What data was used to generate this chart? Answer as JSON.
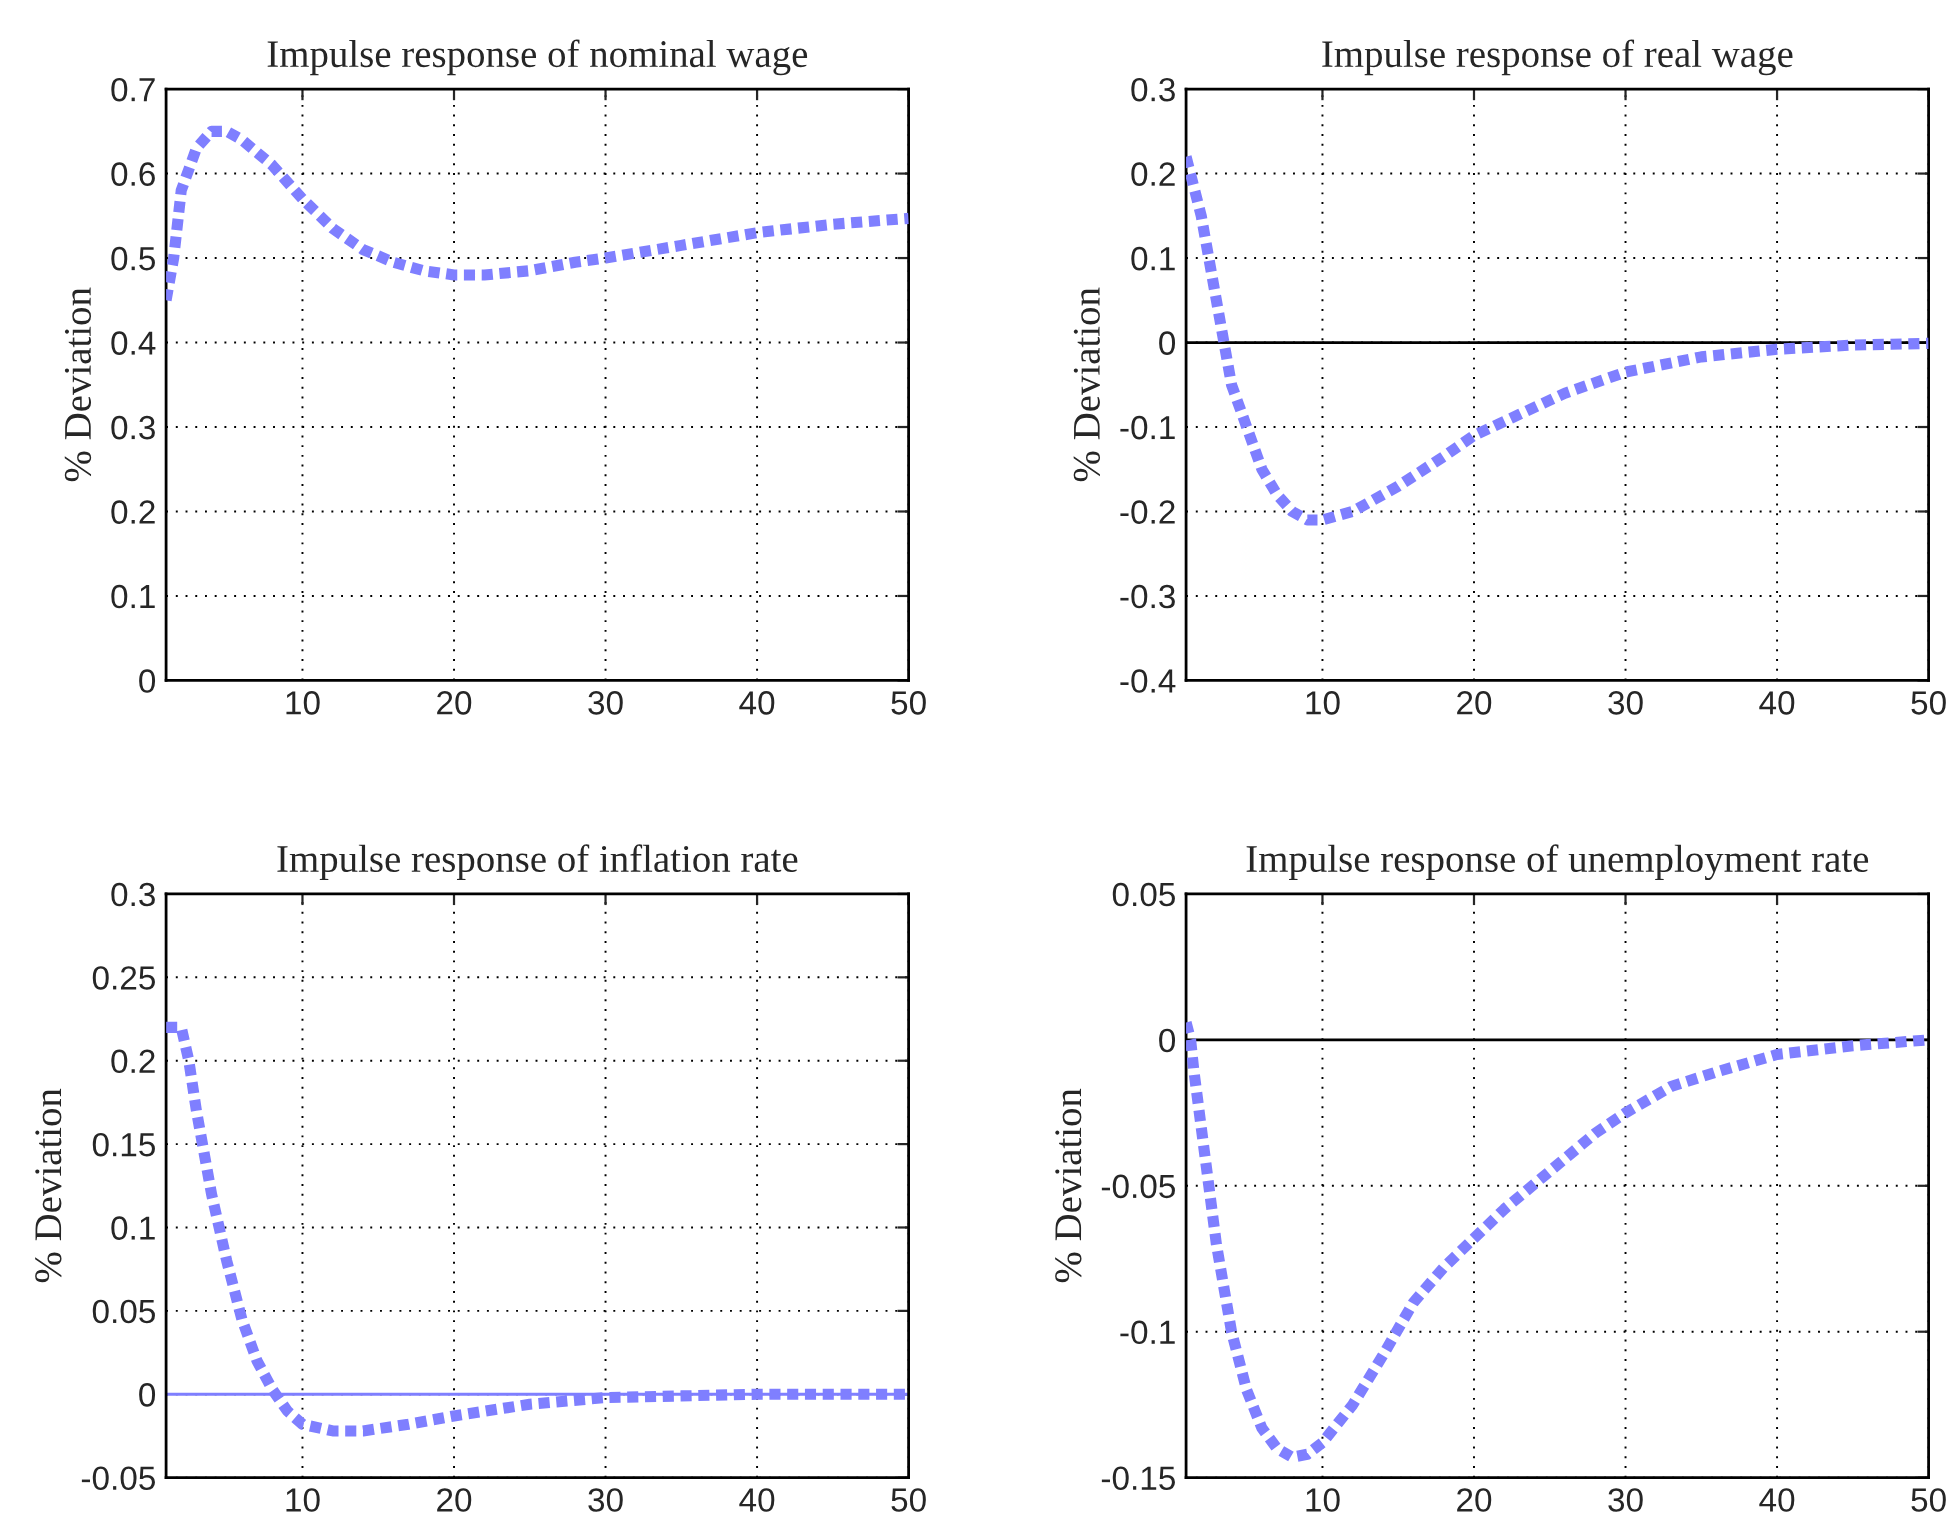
{
  "chart_data": [
    {
      "type": "line",
      "title": "Impulse response of nominal wage",
      "ylabel": "% Deviation",
      "xlim": [
        1,
        50
      ],
      "xticks": [
        10,
        20,
        30,
        40,
        50
      ],
      "ylim": [
        0,
        0.7
      ],
      "yticks": [
        0,
        0.1,
        0.2,
        0.3,
        0.4,
        0.5,
        0.6,
        0.7
      ],
      "grid": true,
      "line_style": "dotted",
      "marker": "none",
      "series": [
        {
          "color": "#7f7fff",
          "x": [
            1,
            1.5,
            2,
            3,
            4,
            5,
            6,
            8,
            10,
            12,
            14,
            16,
            18,
            20,
            22,
            25,
            28,
            30,
            35,
            40,
            45,
            50
          ],
          "values": [
            0.45,
            0.5,
            0.58,
            0.63,
            0.65,
            0.65,
            0.64,
            0.61,
            0.57,
            0.535,
            0.51,
            0.495,
            0.485,
            0.48,
            0.48,
            0.485,
            0.495,
            0.5,
            0.515,
            0.53,
            0.54,
            0.547
          ]
        }
      ]
    },
    {
      "type": "line",
      "title": "Impulse response of real wage",
      "ylabel": "% Deviation",
      "xlim": [
        1,
        50
      ],
      "xticks": [
        10,
        20,
        30,
        40,
        50
      ],
      "ylim": [
        -0.4,
        0.3
      ],
      "yticks": [
        -0.4,
        -0.3,
        -0.2,
        -0.1,
        0,
        0.1,
        0.2,
        0.3
      ],
      "grid": true,
      "line_style": "dotted",
      "marker": "none",
      "ref_lines": [
        {
          "axis": "y",
          "value": 0,
          "color": "#000000"
        }
      ],
      "series": [
        {
          "color": "#7f7fff",
          "x": [
            1,
            2,
            3,
            3.5,
            4,
            5,
            6,
            7,
            8,
            9,
            10,
            12,
            15,
            18,
            20,
            23,
            26,
            30,
            35,
            40,
            45,
            50
          ],
          "values": [
            0.22,
            0.15,
            0.05,
            0,
            -0.05,
            -0.1,
            -0.15,
            -0.18,
            -0.2,
            -0.21,
            -0.21,
            -0.2,
            -0.17,
            -0.135,
            -0.11,
            -0.085,
            -0.06,
            -0.035,
            -0.017,
            -0.008,
            -0.003,
            -0.001
          ]
        }
      ]
    },
    {
      "type": "line",
      "title": "Impulse response of inflation rate",
      "ylabel": "% Deviation",
      "xlim": [
        1,
        50
      ],
      "xticks": [
        10,
        20,
        30,
        40,
        50
      ],
      "ylim": [
        -0.05,
        0.3
      ],
      "yticks": [
        -0.05,
        0,
        0.05,
        0.1,
        0.15,
        0.2,
        0.25,
        0.3
      ],
      "grid": true,
      "line_style": "dotted",
      "marker": "none",
      "ref_lines": [
        {
          "axis": "y",
          "value": 0,
          "color": "#7f7fff"
        }
      ],
      "series": [
        {
          "color": "#7f7fff",
          "x": [
            1,
            2,
            2.5,
            3,
            4,
            5,
            6,
            7,
            8,
            9,
            10,
            12,
            14,
            17,
            20,
            25,
            30,
            35,
            40,
            50
          ],
          "values": [
            0.22,
            0.22,
            0.2,
            0.17,
            0.12,
            0.08,
            0.045,
            0.02,
            0.003,
            -0.01,
            -0.018,
            -0.022,
            -0.022,
            -0.018,
            -0.013,
            -0.006,
            -0.002,
            -0.001,
            0,
            0
          ]
        }
      ]
    },
    {
      "type": "line",
      "title": "Impulse response of unemployment rate",
      "ylabel": "% Deviation",
      "xlim": [
        1,
        50
      ],
      "xticks": [
        10,
        20,
        30,
        40,
        50
      ],
      "ylim": [
        -0.15,
        0.05
      ],
      "yticks": [
        -0.15,
        -0.1,
        -0.05,
        0,
        0.05
      ],
      "grid": true,
      "line_style": "dotted",
      "marker": "none",
      "ref_lines": [
        {
          "axis": "y",
          "value": 0,
          "color": "#000000"
        }
      ],
      "series": [
        {
          "color": "#7f7fff",
          "x": [
            1,
            1.3,
            1.5,
            2,
            2.5,
            3,
            4,
            5,
            6,
            7,
            8,
            9,
            10,
            12,
            14,
            16,
            18,
            20,
            22,
            25,
            28,
            30,
            33,
            36,
            40,
            45,
            50
          ],
          "values": [
            0.006,
            0,
            -0.01,
            -0.03,
            -0.05,
            -0.07,
            -0.1,
            -0.12,
            -0.133,
            -0.14,
            -0.143,
            -0.142,
            -0.138,
            -0.125,
            -0.108,
            -0.09,
            -0.078,
            -0.068,
            -0.058,
            -0.045,
            -0.032,
            -0.025,
            -0.016,
            -0.011,
            -0.005,
            -0.002,
            0
          ]
        }
      ]
    }
  ]
}
